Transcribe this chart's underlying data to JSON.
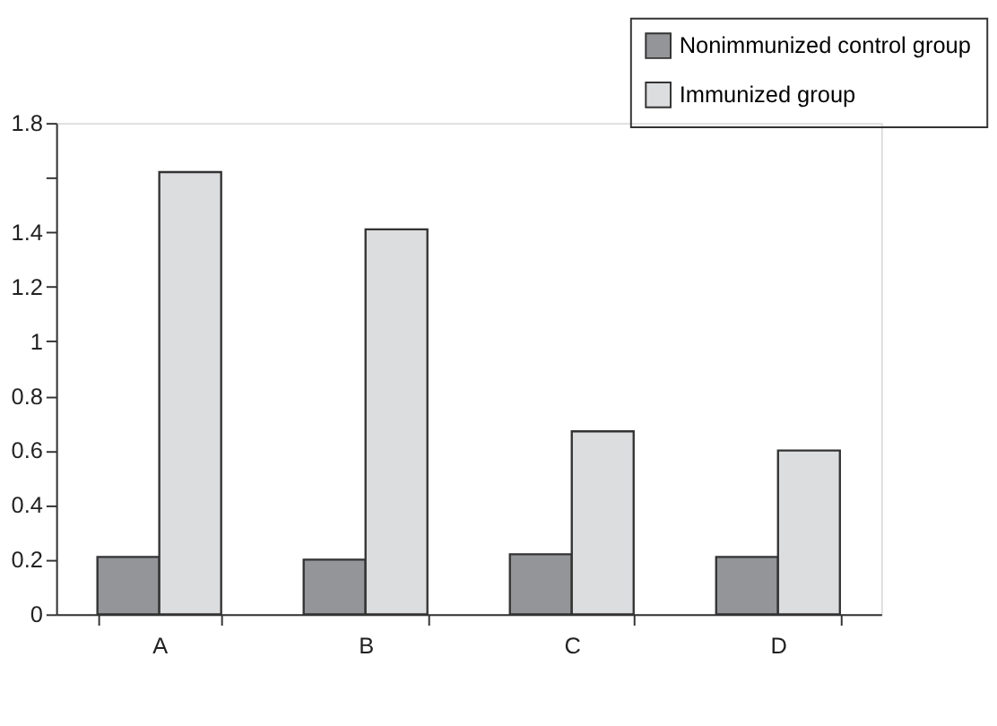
{
  "chart_data": {
    "type": "bar",
    "categories": [
      "A",
      "B",
      "C",
      "D"
    ],
    "series": [
      {
        "name": "Nonimmunized control group",
        "color": "#939598",
        "values": [
          0.21,
          0.2,
          0.22,
          0.21
        ]
      },
      {
        "name": "Immunized group",
        "color": "#dcdddf",
        "values": [
          1.62,
          1.41,
          0.67,
          0.6
        ]
      }
    ],
    "ylim": [
      0,
      1.8
    ],
    "yticks": [
      0,
      0.2,
      0.4,
      0.6,
      0.8,
      1,
      1.2,
      1.4,
      {
        "value": 1.6,
        "label": null
      },
      1.8
    ],
    "grid": false,
    "legend": "top right"
  }
}
